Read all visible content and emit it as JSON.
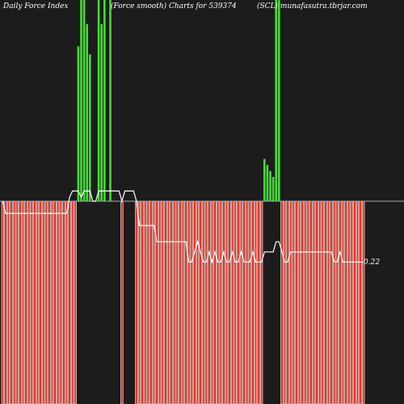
{
  "header": {
    "left": "Daily Force  Index",
    "middle": "(Force smooth) Charts for 539374",
    "right": "(SCL) munafasutra.tbrjar.com"
  },
  "last_value_label": "0.22",
  "colors": {
    "background": "#1c1c1c",
    "positive": "#44dd33",
    "negative": "#e03020",
    "bar_outline": "#ffffff",
    "line": "#ffffff",
    "zero_line": "#aaaaaa"
  },
  "chart_data": {
    "type": "bar",
    "ylim": [
      -1.0,
      1.0
    ],
    "zero": 0,
    "bars": [
      -1,
      -1,
      -1,
      -1,
      -1,
      -1,
      -1,
      -1,
      -1,
      -1,
      -1,
      -1,
      -1,
      -1,
      -1,
      -1,
      -1,
      -1,
      -1,
      -1,
      -1,
      -1,
      -1,
      -1,
      -1,
      -1,
      0.77,
      1.0,
      1.0,
      0.88,
      0.73,
      0,
      0,
      1.0,
      0.88,
      1.0,
      0,
      1.0,
      0,
      0,
      0,
      -1,
      0,
      0,
      0,
      0,
      -1,
      -1,
      -1,
      -1,
      -1,
      -1,
      -1,
      -1,
      -1,
      -1,
      -1,
      -1,
      -1,
      -1,
      -1,
      -1,
      -1,
      -1,
      -1,
      -1,
      -1,
      -1,
      -1,
      -1,
      -1,
      -1,
      -1,
      -1,
      -1,
      -1,
      -1,
      -1,
      -1,
      -1,
      -1,
      -1,
      -1,
      -1,
      -1,
      -1,
      -1,
      -1,
      -1,
      -1,
      0.21,
      0.18,
      0.15,
      0.12,
      1.0,
      1.0,
      -1,
      -1,
      -1,
      -1,
      -1,
      -1,
      -1,
      -1,
      -1,
      -1,
      -1,
      -1,
      -1,
      -1,
      -1,
      -1,
      -1,
      -1,
      -1,
      -1,
      -1,
      -1,
      -1,
      -1,
      -1,
      -1,
      -1,
      -1,
      -1
    ],
    "line": [
      0,
      -0.06,
      -0.06,
      -0.06,
      -0.06,
      -0.06,
      -0.06,
      -0.06,
      -0.06,
      -0.06,
      -0.06,
      -0.06,
      -0.06,
      -0.06,
      -0.06,
      -0.06,
      -0.06,
      -0.06,
      -0.06,
      -0.06,
      -0.06,
      -0.06,
      -0.06,
      0.02,
      0.05,
      0.05,
      0.05,
      0.02,
      0.05,
      0.05,
      0.05,
      0.0,
      0.0,
      0.05,
      0.05,
      0.05,
      0.05,
      0.05,
      0.05,
      0.05,
      0.05,
      0.0,
      0.05,
      0.05,
      0.05,
      0.05,
      0.0,
      -0.12,
      -0.12,
      -0.12,
      -0.12,
      -0.12,
      -0.12,
      -0.2,
      -0.2,
      -0.2,
      -0.2,
      -0.2,
      -0.2,
      -0.2,
      -0.2,
      -0.2,
      -0.2,
      -0.2,
      -0.3,
      -0.3,
      -0.25,
      -0.2,
      -0.25,
      -0.3,
      -0.3,
      -0.25,
      -0.3,
      -0.25,
      -0.3,
      -0.3,
      -0.25,
      -0.3,
      -0.3,
      -0.25,
      -0.3,
      -0.3,
      -0.25,
      -0.3,
      -0.3,
      -0.3,
      -0.25,
      -0.3,
      -0.3,
      -0.3,
      -0.25,
      -0.25,
      -0.25,
      -0.25,
      -0.2,
      -0.2,
      -0.25,
      -0.3,
      -0.3,
      -0.25,
      -0.25,
      -0.25,
      -0.25,
      -0.25,
      -0.25,
      -0.25,
      -0.25,
      -0.25,
      -0.25,
      -0.25,
      -0.25,
      -0.25,
      -0.25,
      -0.25,
      -0.3,
      -0.3,
      -0.25,
      -0.3,
      -0.3,
      -0.3,
      -0.3,
      -0.3,
      -0.3,
      -0.3,
      -0.3
    ]
  }
}
